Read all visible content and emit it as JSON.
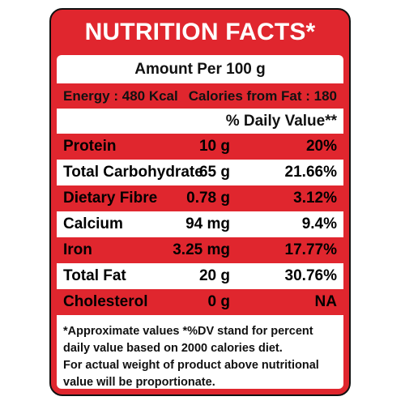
{
  "title": "NUTRITION FACTS*",
  "amount_per": "Amount Per 100 g",
  "energy": "Energy : 480 Kcal",
  "calories_from_fat": "Calories from Fat : 180",
  "daily_value_header": "% Daily Value**",
  "rows": [
    {
      "name": "Protein",
      "amount": "10 g",
      "dv": "20%"
    },
    {
      "name": "Total Carbohydrate",
      "amount": "65 g",
      "dv": "21.66%"
    },
    {
      "name": "Dietary Fibre",
      "amount": "0.78 g",
      "dv": "3.12%"
    },
    {
      "name": "Calcium",
      "amount": "94 mg",
      "dv": "9.4%"
    },
    {
      "name": "Iron",
      "amount": "3.25 mg",
      "dv": "17.77%"
    },
    {
      "name": "Total Fat",
      "amount": "20 g",
      "dv": "30.76%"
    },
    {
      "name": "Cholesterol",
      "amount": "0 g",
      "dv": "NA"
    }
  ],
  "footer_lines": [
    "*Approximate values *%DV stand for percent",
    " daily value based on 2000 calories diet.",
    " For actual weight of product above nutritional",
    " value will be proportionate."
  ],
  "colors": {
    "accent": "#e0262e",
    "text": "#111111",
    "background": "#ffffff"
  }
}
